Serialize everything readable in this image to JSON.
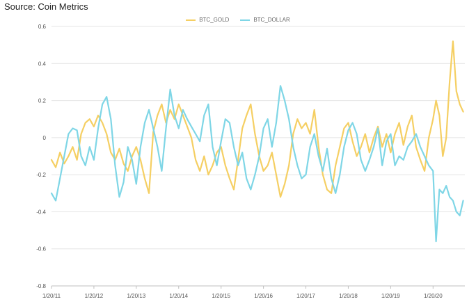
{
  "header": {
    "source": "Source: Coin Metrics"
  },
  "colors": {
    "gold": "#f5cf63",
    "dollar": "#7fd6e6",
    "grid": "#e4e4e4",
    "axis": "#bfbfbf"
  },
  "chart_data": {
    "type": "line",
    "title": "",
    "xlabel": "",
    "ylabel": "",
    "ylim": [
      -0.8,
      0.6
    ],
    "yticks": [
      0.6,
      0.4,
      0.2,
      0,
      -0.2,
      -0.4,
      -0.6,
      -0.8
    ],
    "ytick_labels": [
      "0.6",
      "0.4",
      "0.2",
      "0",
      "-0.2",
      "-0.4",
      "-0.6",
      "-0.8"
    ],
    "xlim": [
      2011.05,
      2020.8
    ],
    "xticks": [
      2011.05,
      2012.05,
      2013.05,
      2014.05,
      2015.05,
      2016.05,
      2017.05,
      2018.05,
      2019.05,
      2020.05
    ],
    "xtick_labels": [
      "1/20/11",
      "1/20/12",
      "1/20/13",
      "1/20/14",
      "1/20/15",
      "1/20/16",
      "1/20/17",
      "1/20/18",
      "1/20/19",
      "1/20/20"
    ],
    "legend_position": "top-center",
    "grid": true,
    "series": [
      {
        "name": "BTC_GOLD",
        "color": "#f5cf63",
        "x": [
          2011.05,
          2011.15,
          2011.25,
          2011.35,
          2011.45,
          2011.55,
          2011.65,
          2011.75,
          2011.85,
          2011.95,
          2012.05,
          2012.15,
          2012.25,
          2012.35,
          2012.45,
          2012.55,
          2012.65,
          2012.75,
          2012.85,
          2012.95,
          2013.05,
          2013.15,
          2013.25,
          2013.35,
          2013.45,
          2013.55,
          2013.65,
          2013.75,
          2013.85,
          2013.95,
          2014.05,
          2014.15,
          2014.25,
          2014.35,
          2014.45,
          2014.55,
          2014.65,
          2014.75,
          2014.85,
          2014.95,
          2015.05,
          2015.15,
          2015.25,
          2015.35,
          2015.45,
          2015.55,
          2015.65,
          2015.75,
          2015.85,
          2015.95,
          2016.05,
          2016.15,
          2016.25,
          2016.35,
          2016.45,
          2016.55,
          2016.65,
          2016.75,
          2016.85,
          2016.95,
          2017.05,
          2017.15,
          2017.25,
          2017.35,
          2017.45,
          2017.55,
          2017.65,
          2017.75,
          2017.85,
          2017.95,
          2018.05,
          2018.15,
          2018.25,
          2018.35,
          2018.45,
          2018.55,
          2018.65,
          2018.75,
          2018.85,
          2018.95,
          2019.05,
          2019.15,
          2019.25,
          2019.35,
          2019.45,
          2019.55,
          2019.65,
          2019.75,
          2019.85,
          2019.95,
          2020.05,
          2020.12,
          2020.2,
          2020.28,
          2020.36,
          2020.44,
          2020.52,
          2020.6,
          2020.68,
          2020.76
        ],
        "y": [
          -0.12,
          -0.16,
          -0.08,
          -0.14,
          -0.1,
          -0.05,
          -0.12,
          0.02,
          0.08,
          0.1,
          0.06,
          0.12,
          0.08,
          0.02,
          -0.08,
          -0.12,
          -0.06,
          -0.14,
          -0.18,
          -0.1,
          -0.05,
          -0.12,
          -0.22,
          -0.3,
          0.03,
          0.12,
          0.18,
          0.08,
          0.15,
          0.1,
          0.18,
          0.12,
          0.06,
          0.0,
          -0.12,
          -0.18,
          -0.1,
          -0.2,
          -0.15,
          -0.08,
          -0.05,
          -0.15,
          -0.22,
          -0.28,
          -0.12,
          0.05,
          0.12,
          0.18,
          0.02,
          -0.1,
          -0.18,
          -0.15,
          -0.08,
          -0.2,
          -0.32,
          -0.25,
          -0.15,
          0.02,
          0.1,
          0.05,
          0.08,
          0.02,
          0.15,
          -0.05,
          -0.2,
          -0.28,
          -0.3,
          -0.15,
          -0.05,
          0.05,
          0.08,
          -0.02,
          -0.1,
          -0.05,
          0.02,
          -0.08,
          0.0,
          0.06,
          -0.05,
          0.02,
          -0.08,
          0.02,
          0.08,
          -0.04,
          0.06,
          0.12,
          -0.05,
          -0.12,
          -0.18,
          0.0,
          0.1,
          0.2,
          0.12,
          -0.1,
          0.0,
          0.3,
          0.52,
          0.25,
          0.18,
          0.14
        ]
      },
      {
        "name": "BTC_DOLLAR",
        "color": "#7fd6e6",
        "x": [
          2011.05,
          2011.15,
          2011.25,
          2011.35,
          2011.45,
          2011.55,
          2011.65,
          2011.75,
          2011.85,
          2011.95,
          2012.05,
          2012.15,
          2012.25,
          2012.35,
          2012.45,
          2012.55,
          2012.65,
          2012.75,
          2012.85,
          2012.95,
          2013.05,
          2013.15,
          2013.25,
          2013.35,
          2013.45,
          2013.55,
          2013.65,
          2013.75,
          2013.85,
          2013.95,
          2014.05,
          2014.15,
          2014.25,
          2014.35,
          2014.45,
          2014.55,
          2014.65,
          2014.75,
          2014.85,
          2014.95,
          2015.05,
          2015.15,
          2015.25,
          2015.35,
          2015.45,
          2015.55,
          2015.65,
          2015.75,
          2015.85,
          2015.95,
          2016.05,
          2016.15,
          2016.25,
          2016.35,
          2016.45,
          2016.55,
          2016.65,
          2016.75,
          2016.85,
          2016.95,
          2017.05,
          2017.15,
          2017.25,
          2017.35,
          2017.45,
          2017.55,
          2017.65,
          2017.75,
          2017.85,
          2017.95,
          2018.05,
          2018.15,
          2018.25,
          2018.35,
          2018.45,
          2018.55,
          2018.65,
          2018.75,
          2018.85,
          2018.95,
          2019.05,
          2019.15,
          2019.25,
          2019.35,
          2019.45,
          2019.55,
          2019.65,
          2019.75,
          2019.85,
          2019.95,
          2020.05,
          2020.12,
          2020.2,
          2020.28,
          2020.36,
          2020.44,
          2020.52,
          2020.6,
          2020.68,
          2020.76
        ],
        "y": [
          -0.3,
          -0.34,
          -0.22,
          -0.1,
          0.02,
          0.05,
          0.04,
          -0.1,
          -0.15,
          -0.05,
          -0.12,
          0.05,
          0.18,
          0.22,
          0.1,
          -0.15,
          -0.32,
          -0.24,
          -0.05,
          -0.12,
          -0.25,
          -0.05,
          0.08,
          0.15,
          0.05,
          -0.05,
          -0.18,
          0.05,
          0.26,
          0.12,
          0.05,
          0.15,
          0.1,
          0.06,
          0.02,
          -0.02,
          0.12,
          0.18,
          -0.05,
          -0.15,
          -0.02,
          0.1,
          0.08,
          -0.05,
          -0.15,
          -0.08,
          -0.22,
          -0.28,
          -0.2,
          -0.1,
          0.05,
          0.1,
          -0.05,
          0.08,
          0.28,
          0.2,
          0.1,
          -0.05,
          -0.15,
          -0.22,
          -0.2,
          -0.05,
          0.02,
          -0.1,
          -0.18,
          -0.06,
          -0.22,
          -0.3,
          -0.2,
          -0.05,
          0.04,
          0.08,
          0.02,
          -0.12,
          -0.18,
          -0.12,
          -0.05,
          0.05,
          -0.15,
          -0.02,
          0.02,
          -0.15,
          -0.1,
          -0.12,
          -0.05,
          -0.02,
          0.02,
          -0.05,
          -0.1,
          -0.15,
          -0.18,
          -0.56,
          -0.28,
          -0.3,
          -0.26,
          -0.32,
          -0.34,
          -0.4,
          -0.42,
          -0.34
        ]
      }
    ]
  }
}
